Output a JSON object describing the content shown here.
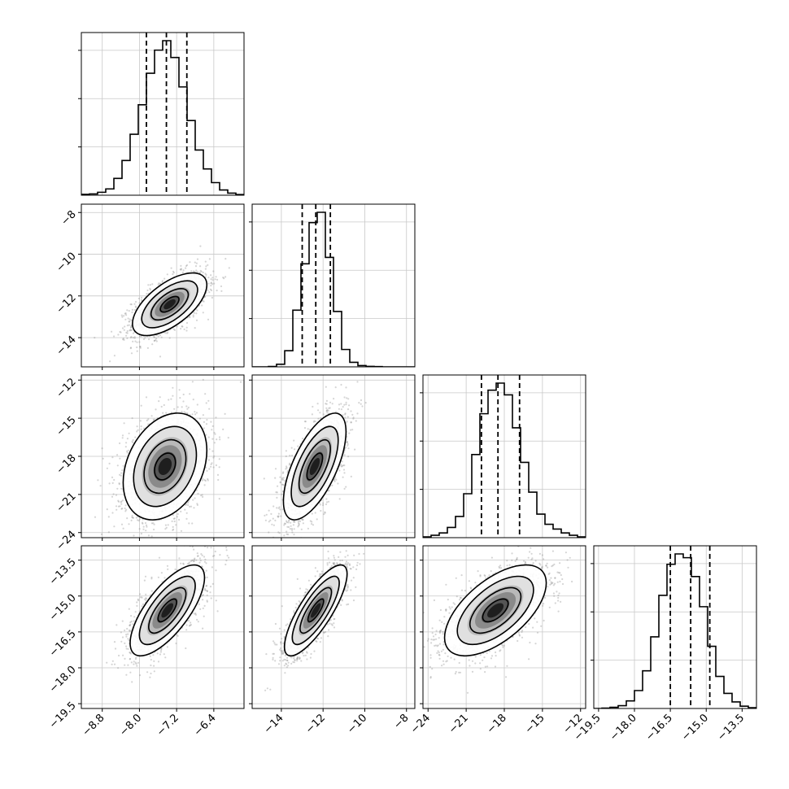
{
  "chart_data": {
    "type": "corner",
    "parameters": [
      {
        "name": "",
        "xlim": [
          -9.25,
          -5.75
        ],
        "axis_ticks": [
          -8.8,
          -8.0,
          -7.2,
          -6.4
        ],
        "axis_tick_labels": [
          "−8.8",
          "−8.0",
          "−7.2",
          "−6.4"
        ],
        "quantiles": [
          -7.85,
          -7.42,
          -6.98
        ],
        "histogram": {
          "bin_edges": [
            -9.25,
            -9.075,
            -8.9,
            -8.725,
            -8.55,
            -8.375,
            -8.2,
            -8.025,
            -7.85,
            -7.675,
            -7.5,
            -7.325,
            -7.15,
            -6.975,
            -6.8,
            -6.625,
            -6.45,
            -6.275,
            -6.1,
            -5.925,
            -5.75
          ],
          "counts": [
            4,
            6,
            14,
            30,
            80,
            165,
            290,
            430,
            580,
            690,
            735,
            655,
            515,
            355,
            215,
            125,
            60,
            25,
            10,
            3
          ]
        }
      },
      {
        "name": "",
        "xlim": [
          -15.4,
          -7.6
        ],
        "axis_ticks": [
          -14,
          -12,
          -10,
          -8
        ],
        "axis_tick_labels": [
          "−14",
          "−12",
          "−10",
          "−8"
        ],
        "yaxis_ticks": [
          -8,
          -10,
          -12,
          -14
        ],
        "yaxis_tick_labels": [
          "−8",
          "−10",
          "−12",
          "−14"
        ],
        "quantiles": [
          -13.0,
          -12.35,
          -11.65
        ],
        "histogram": {
          "bin_edges": [
            -15.4,
            -15.01,
            -14.62,
            -14.23,
            -13.84,
            -13.45,
            -13.06,
            -12.67,
            -12.28,
            -11.89,
            -11.5,
            -11.11,
            -10.72,
            -10.33,
            -9.94,
            -9.55,
            -9.16,
            -8.77,
            -8.38,
            -7.99,
            -7.6
          ],
          "counts": [
            0,
            0,
            3,
            20,
            125,
            440,
            800,
            1120,
            1200,
            850,
            430,
            135,
            35,
            10,
            4,
            2,
            0,
            0,
            0,
            0
          ]
        }
      },
      {
        "name": "",
        "xlim": [
          -24.4,
          -11.6
        ],
        "axis_ticks": [
          -24,
          -21,
          -18,
          -15,
          -12
        ],
        "axis_tick_labels": [
          "−24",
          "−21",
          "−18",
          "−15",
          "−12"
        ],
        "yaxis_ticks": [
          -12,
          -15,
          -18,
          -21,
          -24
        ],
        "yaxis_tick_labels": [
          "−12",
          "−15",
          "−18",
          "−21",
          "−24"
        ],
        "quantiles": [
          -19.8,
          -18.5,
          -16.8
        ],
        "histogram": {
          "bin_edges": [
            -24.4,
            -23.76,
            -23.12,
            -22.48,
            -21.84,
            -21.2,
            -20.56,
            -19.92,
            -19.28,
            -18.64,
            -18.0,
            -17.36,
            -16.72,
            -16.08,
            -15.44,
            -14.8,
            -14.16,
            -13.52,
            -12.88,
            -12.24,
            -11.6
          ],
          "counts": [
            5,
            15,
            30,
            65,
            135,
            280,
            530,
            790,
            940,
            985,
            910,
            700,
            480,
            290,
            150,
            85,
            55,
            30,
            15,
            5
          ]
        }
      },
      {
        "name": "",
        "xlim": [
          -19.7,
          -12.9
        ],
        "axis_ticks": [
          -19.5,
          -18.0,
          -16.5,
          -15.0,
          -13.5
        ],
        "axis_tick_labels": [
          "−19.5",
          "−18.0",
          "−16.5",
          "−15.0",
          "−13.5"
        ],
        "yaxis_ticks": [
          -13.5,
          -15.0,
          -16.5,
          -18.0,
          -19.5
        ],
        "yaxis_tick_labels": [
          "−13.5",
          "−15.0",
          "−16.5",
          "−18.0",
          "−19.5"
        ],
        "quantiles": [
          -16.5,
          -15.65,
          -14.85
        ],
        "histogram": {
          "bin_edges": [
            -19.7,
            -19.36,
            -19.02,
            -18.68,
            -18.34,
            -18.0,
            -17.66,
            -17.32,
            -16.98,
            -16.64,
            -16.3,
            -15.96,
            -15.62,
            -15.28,
            -14.94,
            -14.6,
            -14.26,
            -13.92,
            -13.58,
            -13.24,
            -12.9
          ],
          "counts": [
            0,
            2,
            6,
            15,
            40,
            95,
            200,
            380,
            600,
            765,
            820,
            800,
            700,
            540,
            330,
            170,
            80,
            35,
            12,
            4
          ]
        }
      }
    ],
    "pairs": [
      {
        "x_param": 0,
        "y_param": 1,
        "center": [
          -7.35,
          -12.4
        ],
        "std": [
          0.4,
          0.75
        ],
        "correlation": 0.62
      },
      {
        "x_param": 0,
        "y_param": 2,
        "center": [
          -7.45,
          -18.8
        ],
        "std": [
          0.45,
          2.1
        ],
        "correlation": 0.3
      },
      {
        "x_param": 1,
        "y_param": 2,
        "center": [
          -12.4,
          -18.8
        ],
        "std": [
          0.75,
          2.1
        ],
        "correlation": 0.65
      },
      {
        "x_param": 0,
        "y_param": 3,
        "center": [
          -7.4,
          -15.6
        ],
        "std": [
          0.4,
          0.95
        ],
        "correlation": 0.72
      },
      {
        "x_param": 1,
        "y_param": 3,
        "center": [
          -12.35,
          -15.6
        ],
        "std": [
          0.75,
          0.95
        ],
        "correlation": 0.8
      },
      {
        "x_param": 2,
        "y_param": 3,
        "center": [
          -18.7,
          -15.6
        ],
        "std": [
          2.0,
          0.95
        ],
        "correlation": 0.6
      }
    ],
    "contour_levels_sigma": [
      0.5,
      1.0,
      1.5,
      2.0
    ],
    "density_shading": "grayscale",
    "scatter_color": "#888888",
    "line_color": "#000000",
    "grid": true
  }
}
